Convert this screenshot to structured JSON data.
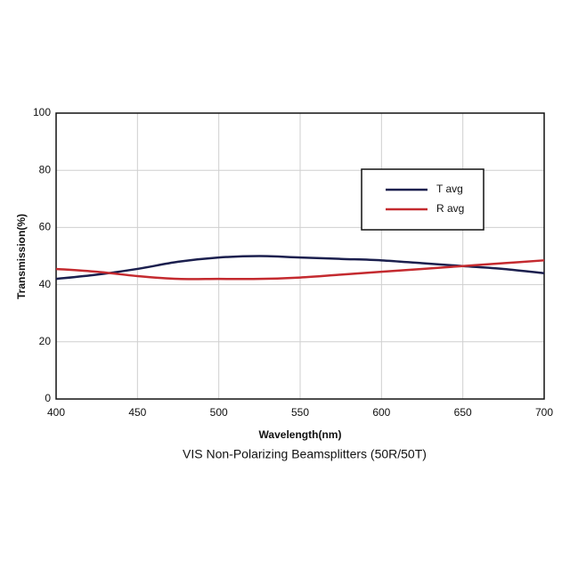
{
  "chart_data": {
    "type": "line",
    "title": "VIS Non-Polarizing Beamsplitters (50R/50T)",
    "x_label": "Wavelength(nm)",
    "y_label": "Transmission(%)",
    "x": [
      400,
      425,
      450,
      475,
      500,
      525,
      550,
      575,
      600,
      625,
      650,
      675,
      700
    ],
    "series": [
      {
        "name": "T avg",
        "color": "#1b1f4e",
        "values": [
          42,
          43.5,
          45.5,
          48,
          49.5,
          50,
          49.5,
          49,
          48.5,
          47.5,
          46.5,
          45.5,
          44
        ]
      },
      {
        "name": "R avg",
        "color": "#c42a2f",
        "values": [
          45.5,
          44.5,
          43,
          42,
          42,
          42,
          42.5,
          43.5,
          44.5,
          45.5,
          46.5,
          47.5,
          48.5
        ]
      }
    ],
    "xlim": [
      400,
      700
    ],
    "xticks": [
      400,
      450,
      500,
      550,
      600,
      650,
      700
    ],
    "ylim": [
      0,
      100
    ],
    "yticks": [
      0,
      20,
      40,
      60,
      80,
      100
    ],
    "grid": true,
    "legend": "upper right"
  }
}
